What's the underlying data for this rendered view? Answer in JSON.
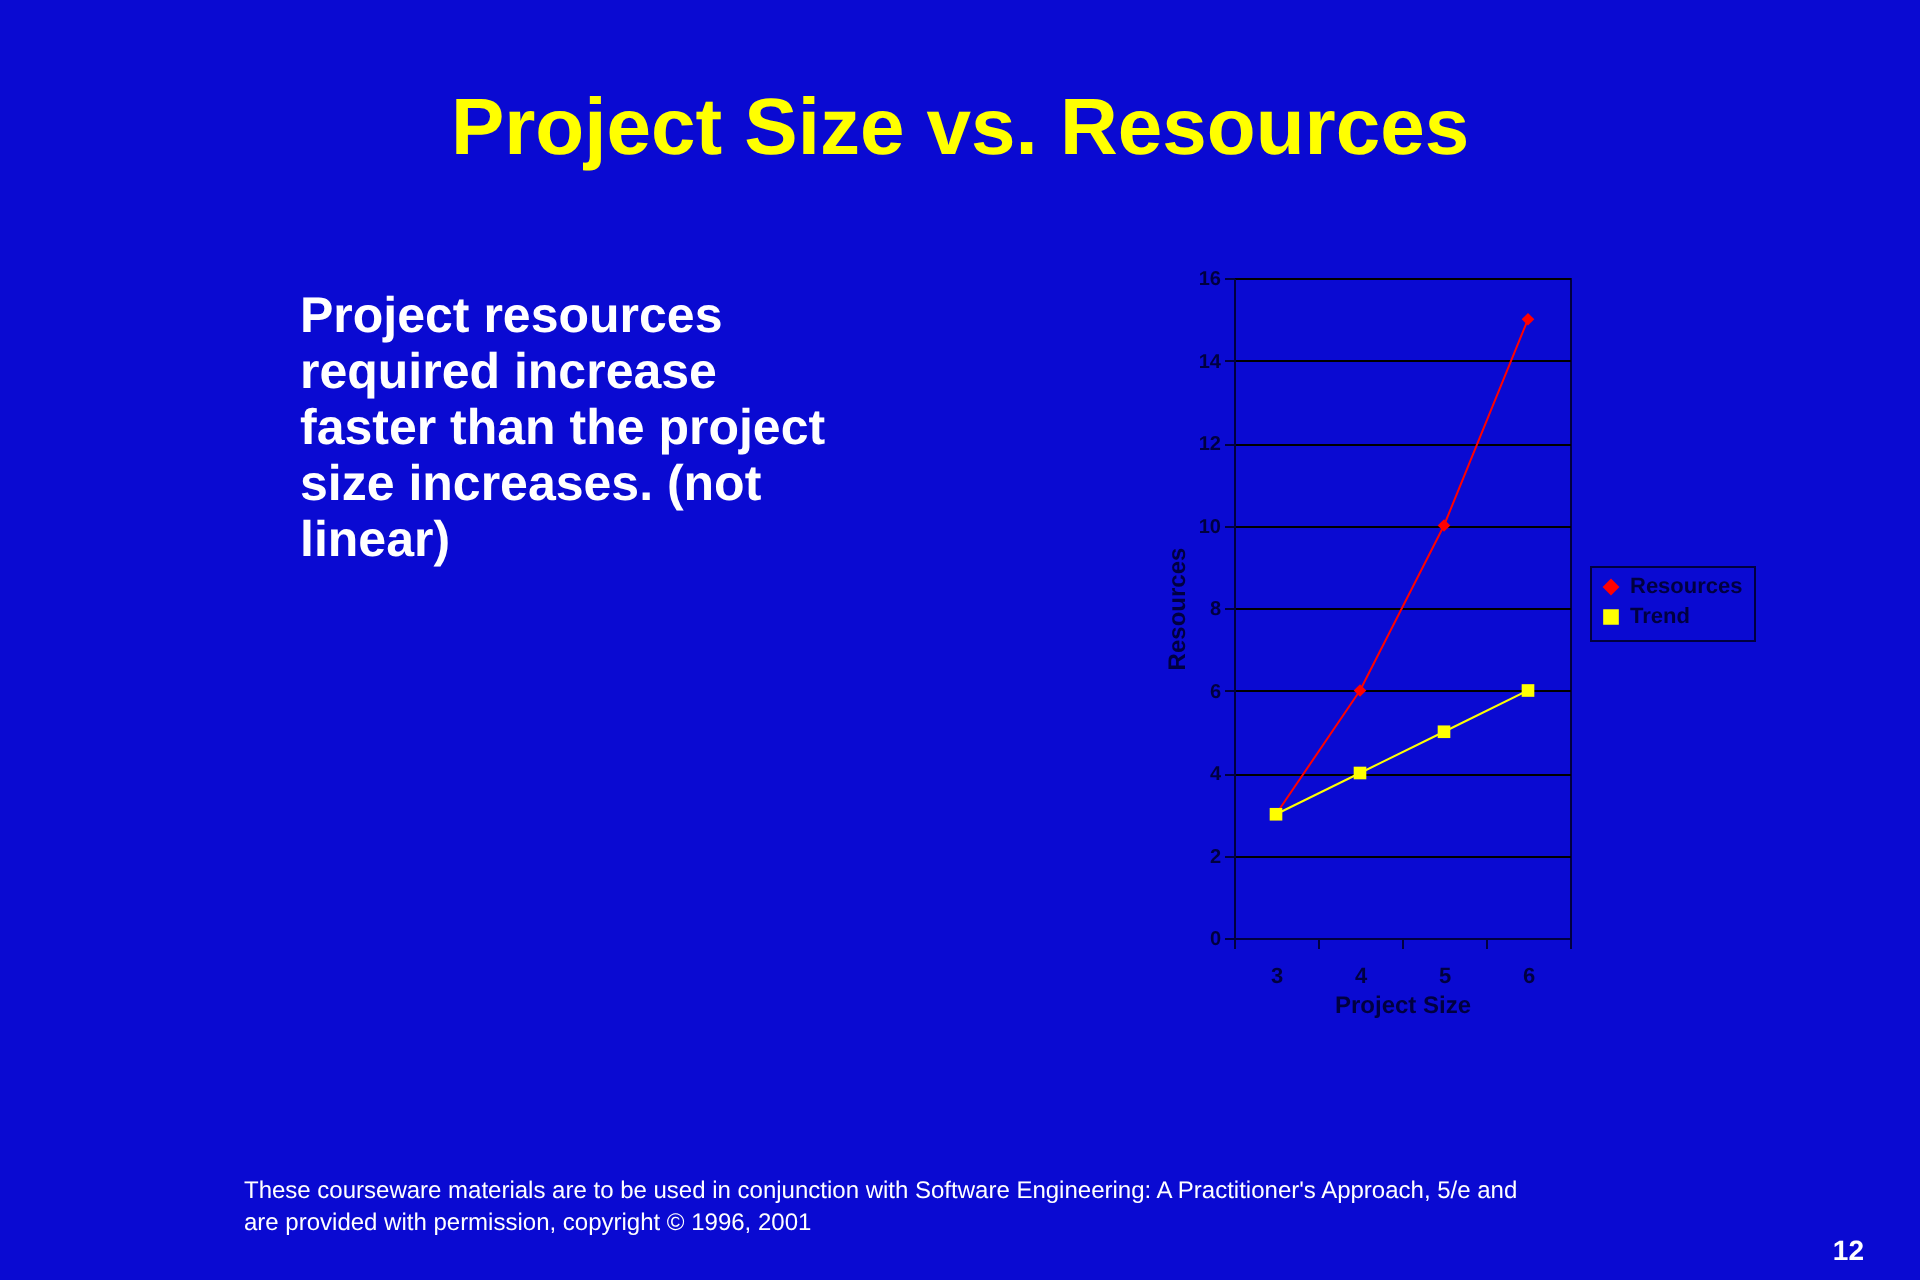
{
  "chart_data": {
    "type": "line",
    "title": "Project Size vs. Resources",
    "annotations": [
      "Project resources required increase faster than the project size increases.  (not linear)",
      "These courseware materials are to be used in conjunction with Software Engineering: A Practitioner's Approach, 5/e and are provided with permission, copyright © 1996, 2001",
      "12"
    ],
    "categories": [
      "3",
      "4",
      "5",
      "6"
    ],
    "xlabel": "Project Size",
    "ylabel": "Resources",
    "series": [
      {
        "name": "Resources",
        "color": "#ff0000",
        "marker": "diamond",
        "values": [
          3,
          6,
          10,
          15
        ]
      },
      {
        "name": "Trend",
        "color": "#ffff00",
        "marker": "square",
        "values": [
          3,
          4,
          5,
          6
        ]
      }
    ],
    "ylim": [
      0,
      16
    ],
    "yticks": [
      0,
      2,
      4,
      6,
      8,
      10,
      12,
      14,
      16
    ],
    "grid": "y",
    "legend": "right"
  }
}
